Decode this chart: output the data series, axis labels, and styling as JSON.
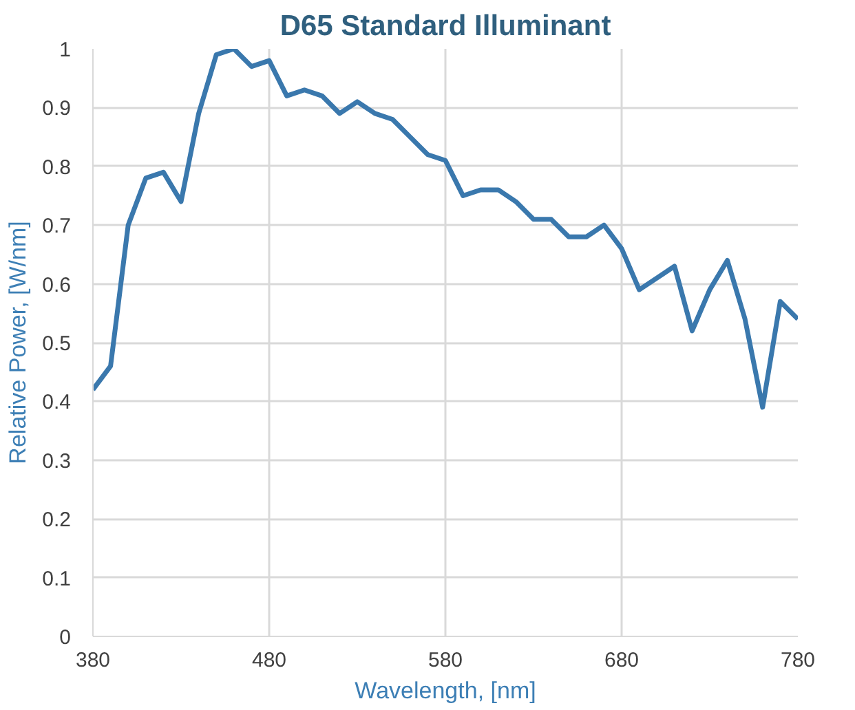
{
  "chart_data": {
    "type": "line",
    "title": "D65 Standard Illuminant",
    "xlabel": "Wavelength, [nm]",
    "ylabel": "Relative Power, [W/nm]",
    "x": [
      380,
      390,
      400,
      410,
      420,
      430,
      440,
      450,
      460,
      470,
      480,
      490,
      500,
      510,
      520,
      530,
      540,
      550,
      560,
      570,
      580,
      590,
      600,
      610,
      620,
      630,
      640,
      650,
      660,
      670,
      680,
      690,
      700,
      710,
      720,
      730,
      740,
      750,
      760,
      770,
      780
    ],
    "series": [
      {
        "color": "#3a78ad",
        "values": [
          0.42,
          0.46,
          0.7,
          0.78,
          0.79,
          0.74,
          0.89,
          0.99,
          1.0,
          0.97,
          0.98,
          0.92,
          0.93,
          0.92,
          0.89,
          0.91,
          0.89,
          0.88,
          0.85,
          0.82,
          0.81,
          0.75,
          0.76,
          0.76,
          0.74,
          0.71,
          0.71,
          0.68,
          0.68,
          0.7,
          0.66,
          0.59,
          0.61,
          0.63,
          0.52,
          0.59,
          0.64,
          0.54,
          0.39,
          0.57,
          0.54
        ]
      }
    ],
    "xlim": [
      380,
      780
    ],
    "xticks": [
      380,
      480,
      580,
      680,
      780
    ],
    "ylim": [
      0,
      1
    ],
    "yticks": [
      0,
      {
        "value": 0.1,
        "label": "0.1"
      },
      {
        "value": 0.2,
        "label": "0.2"
      },
      {
        "value": 0.3,
        "label": "0.3"
      },
      {
        "value": 0.4,
        "label": "0.4"
      },
      {
        "value": 0.5,
        "label": "0.5"
      },
      {
        "value": 0.6,
        "label": "0.6"
      },
      {
        "value": 0.7,
        "label": "0.7"
      },
      {
        "value": 0.8,
        "label": "0.8"
      },
      {
        "value": 0.9,
        "label": "0.9"
      },
      1
    ],
    "grid": true,
    "marker": "none",
    "line_style": "solid"
  }
}
